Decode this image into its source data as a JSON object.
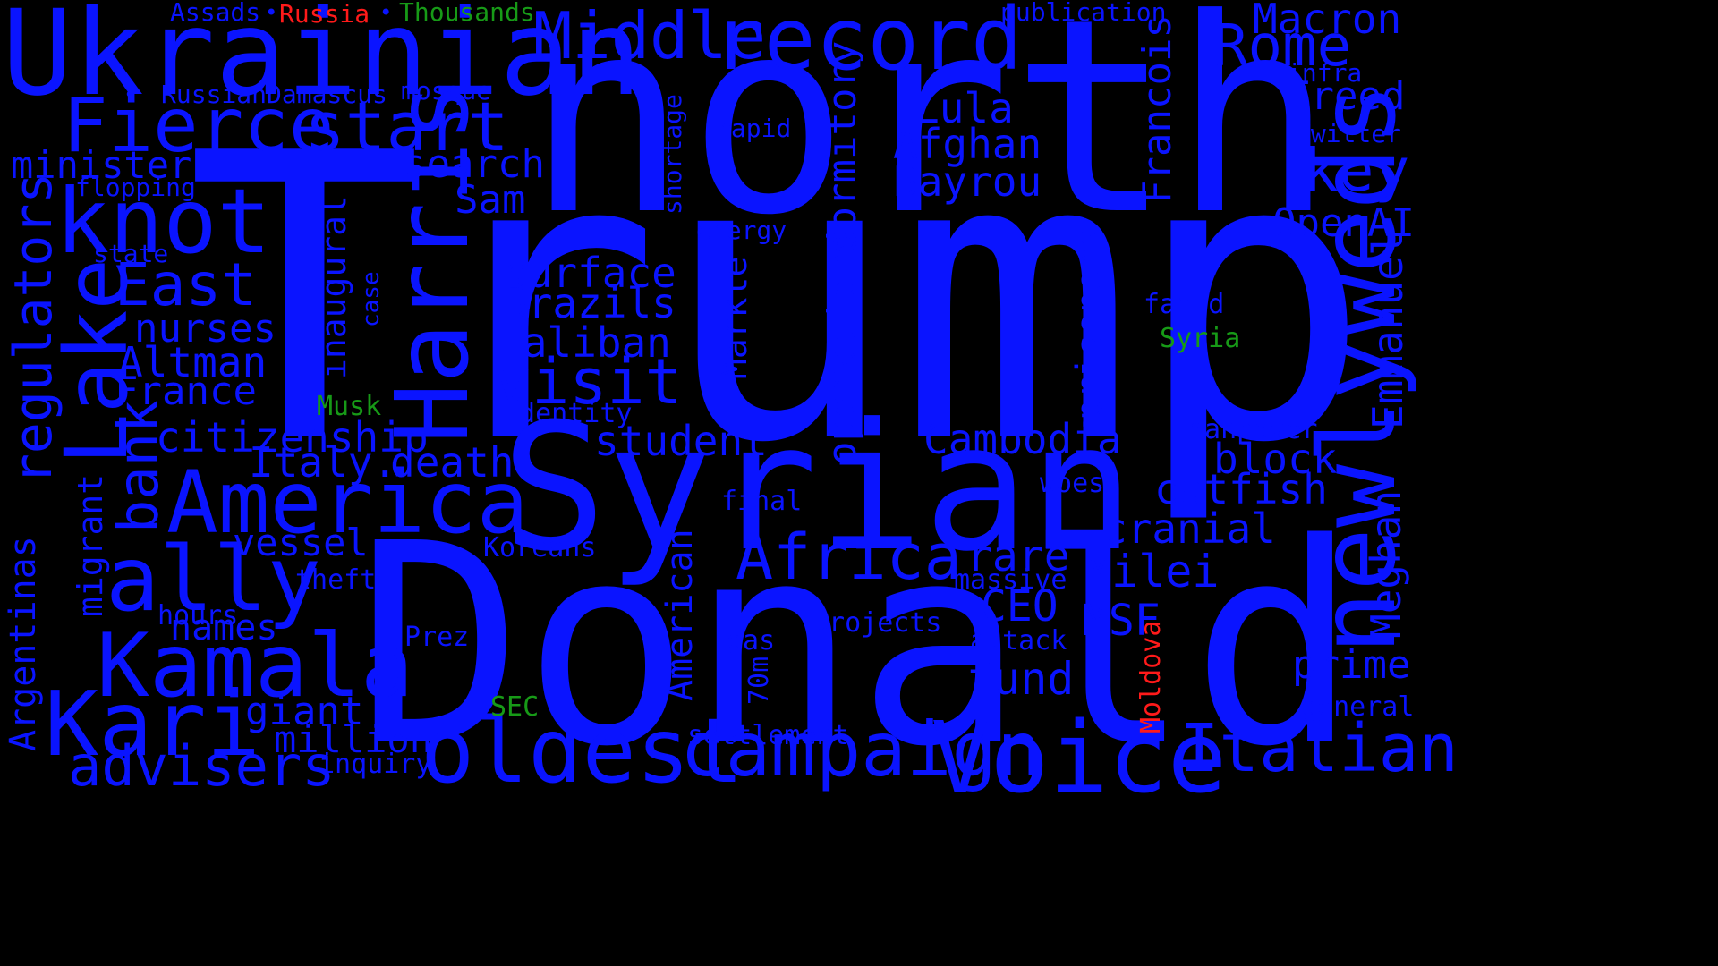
{
  "colors": {
    "background": "#000000",
    "primary": "#0a14ff",
    "green": "#179a17",
    "red": "#ff1a1a"
  },
  "words": {
    "trump": "Trump",
    "donald": "Donald",
    "north": "north",
    "syrian": "Syrian",
    "ukrainian": "Ukrainian",
    "record": "record",
    "middle": "Middle",
    "newlyweds": "newlyweds",
    "voice": "Voice",
    "oldest": "oldest",
    "campaign": "campaign",
    "italian": "Italian",
    "harris": "Harris",
    "america": "America",
    "kamala": "Kamala",
    "kari": "Kari",
    "ally": "ally",
    "knot": "knot",
    "lake": "Lake",
    "fierce": "Fierce",
    "start": "start",
    "africa": "Africa",
    "advisers": "advisers",
    "east": "East",
    "bank": "bank",
    "regulators": "regulators",
    "visit": "visit",
    "cambodia": "Cambodia",
    "operations": "operations",
    "dormitory": "dormitory",
    "rome": "Rome",
    "macron": "Macron",
    "key": "key",
    "emmanuel": "Emmanuel",
    "meghan": "Meghan",
    "prime": "prime",
    "catfish": "catfish",
    "block": "block",
    "cranial": "cranial",
    "milei": "Milei",
    "fund": "fund",
    "rare": "rare",
    "ceo": "CEO",
    "msf": "MSF",
    "francois": "Francois",
    "lula": "Lula",
    "afghan": "Afghan",
    "bayrou": "Bayrou",
    "openai": "OpenAI",
    "freed": "Freed",
    "taliban": "Taliban",
    "surface": "surface",
    "brazils": "Brazils",
    "student": "student",
    "death": "death",
    "italy": "Italy.",
    "citizenship": "citizenship",
    "altman": "Altman",
    "france": "France",
    "nurses": "nurses",
    "search": "search",
    "sam": "Sam",
    "minister": "minister",
    "vessel": "vessel",
    "giant": "giant",
    "million": "million",
    "names": "names",
    "argentinas": "Argentinas",
    "migrant": "migrant",
    "inaugural": "inaugural",
    "american": "American",
    "prisoners": "prisoners",
    "markle": "Markle",
    "identity": "identity",
    "final": "final",
    "koreans": "Koreans",
    "theft": "theft",
    "hours": "hours",
    "prez": "Prez",
    "gas": "gas",
    "projects": "projects",
    "attack": "attack",
    "massive": "massive",
    "woes": "woes",
    "manpower": "manpower",
    "famed": "famed",
    "syria": "Syria",
    "moldova": "Moldova",
    "general": "general",
    "settlement": "settlement",
    "inquiry": "inquiry",
    "sec": "SEC",
    "seventy_m": "70m",
    "musk": "Musk",
    "case": "case",
    "state": "state",
    "flopping": "flopping",
    "russian": "Russian",
    "damascus": "Damascus",
    "mosque": "mosque",
    "assads": "Assads",
    "russia": "Russia",
    "thousands": "Thousands",
    "publication": "publication",
    "infra": "infra",
    "twitter": "Twitter",
    "rapid": "rapid",
    "energy": "energy",
    "shortage": "shortage"
  }
}
